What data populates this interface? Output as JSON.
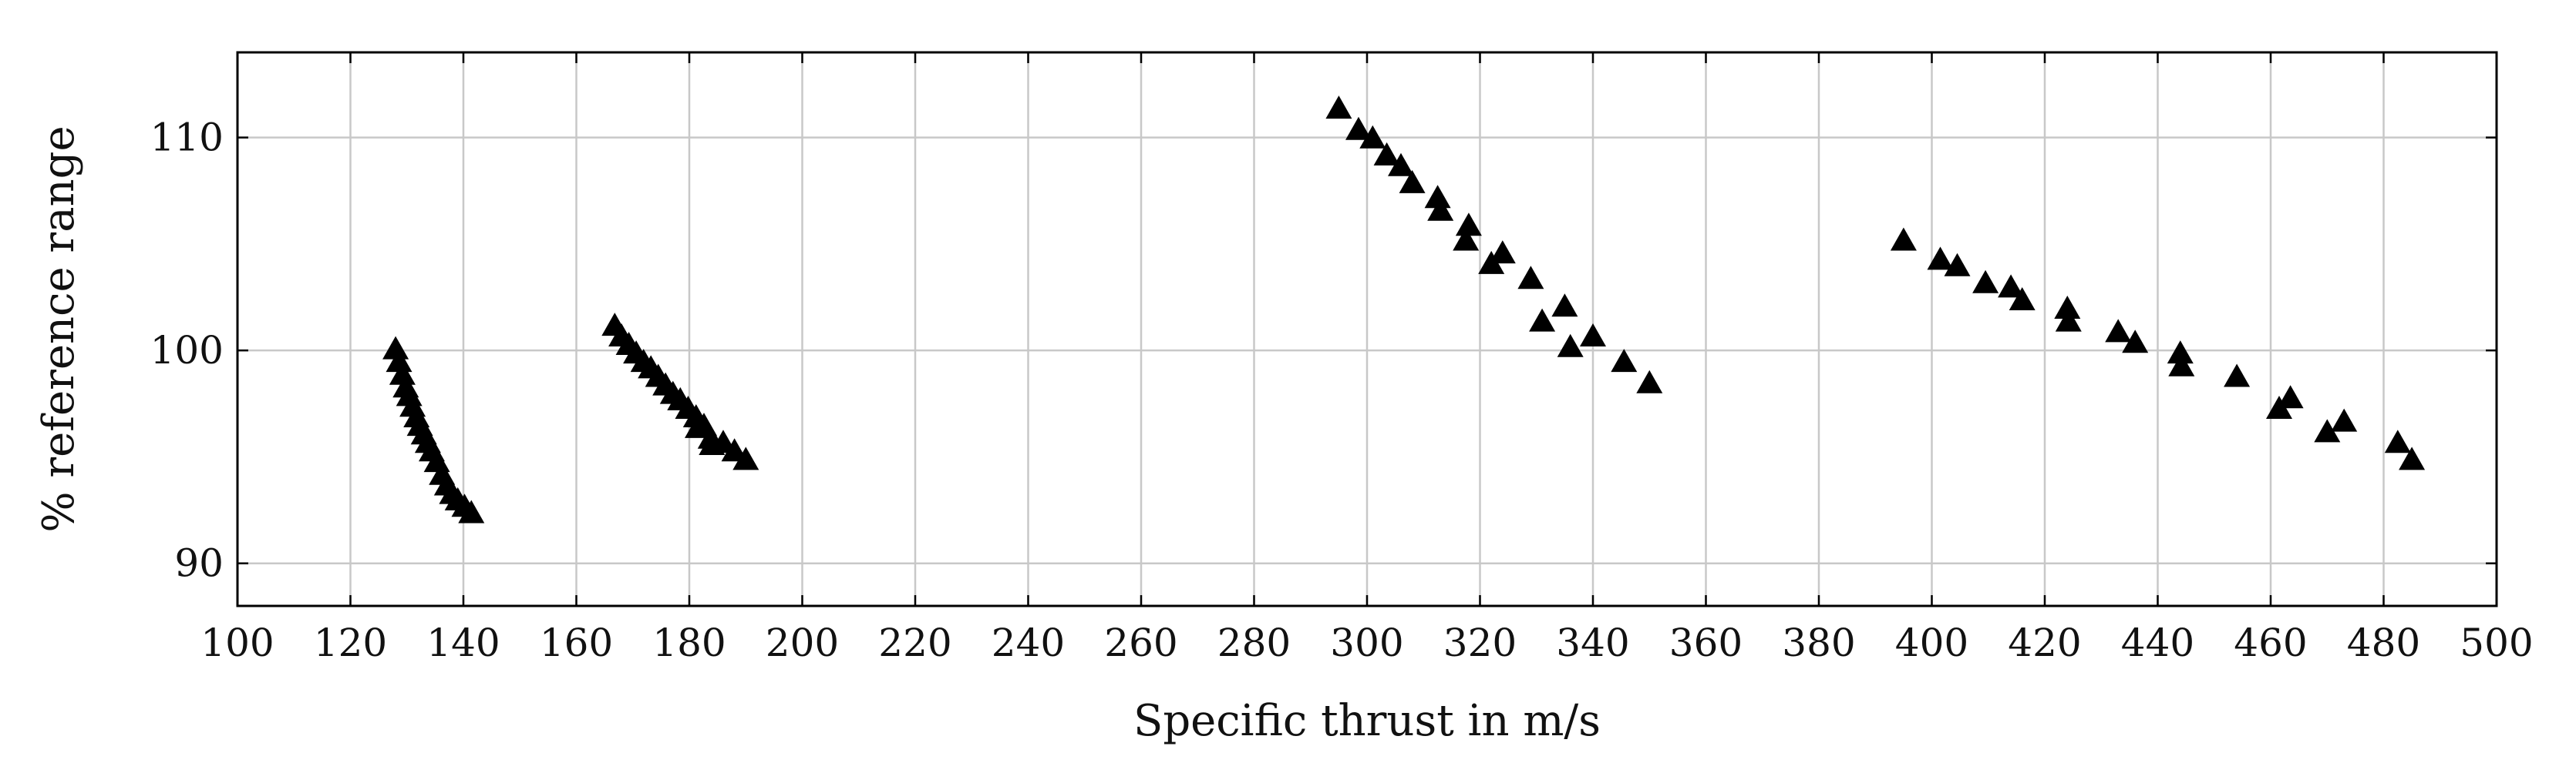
{
  "chart_data": {
    "type": "scatter",
    "xlabel": "Specific thrust in m/s",
    "ylabel": "% reference range",
    "xlim": [
      100,
      500
    ],
    "ylim": [
      88,
      114
    ],
    "xticks": [
      100,
      120,
      140,
      160,
      180,
      200,
      220,
      240,
      260,
      280,
      300,
      320,
      340,
      360,
      380,
      400,
      420,
      440,
      460,
      480,
      500
    ],
    "yticks": [
      90,
      100,
      110
    ],
    "grid": true,
    "marker": "triangle",
    "marker_color": "#000000",
    "grid_color": "#c8c8c8",
    "series": [
      {
        "points": [
          [
            128,
            100.0
          ],
          [
            128.6,
            99.4
          ],
          [
            129.2,
            98.8
          ],
          [
            129.8,
            98.2
          ],
          [
            130.4,
            97.8
          ],
          [
            131.0,
            97.3
          ],
          [
            131.7,
            96.8
          ],
          [
            132.3,
            96.4
          ],
          [
            133.0,
            96.0
          ],
          [
            133.7,
            95.6
          ],
          [
            134.4,
            95.2
          ],
          [
            135.3,
            94.7
          ],
          [
            136.2,
            94.1
          ],
          [
            137.1,
            93.6
          ],
          [
            138.0,
            93.2
          ],
          [
            139.0,
            92.9
          ],
          [
            140.2,
            92.6
          ],
          [
            141.4,
            92.3
          ]
        ]
      },
      {
        "points": [
          [
            166.8,
            101.1
          ],
          [
            168.0,
            100.6
          ],
          [
            169.3,
            100.2
          ],
          [
            170.6,
            99.8
          ],
          [
            171.9,
            99.4
          ],
          [
            173.2,
            99.1
          ],
          [
            174.5,
            98.7
          ],
          [
            175.8,
            98.3
          ],
          [
            177.1,
            97.9
          ],
          [
            178.4,
            97.6
          ],
          [
            179.8,
            97.2
          ],
          [
            181.2,
            96.8
          ],
          [
            182.6,
            96.4
          ],
          [
            183.8,
            95.8
          ],
          [
            186.0,
            95.6
          ],
          [
            188.0,
            95.2
          ],
          [
            190.0,
            94.8
          ],
          [
            181.5,
            96.3
          ],
          [
            184.0,
            95.5
          ]
        ]
      },
      {
        "points": [
          [
            295.0,
            111.3
          ],
          [
            298.5,
            110.3
          ],
          [
            301.0,
            109.9
          ],
          [
            303.5,
            109.1
          ],
          [
            306.0,
            108.6
          ],
          [
            308.0,
            107.8
          ],
          [
            312.5,
            107.1
          ],
          [
            313.0,
            106.5
          ],
          [
            318.0,
            105.8
          ],
          [
            317.5,
            105.1
          ],
          [
            322.0,
            104.0
          ],
          [
            324.0,
            104.5
          ],
          [
            329.0,
            103.3
          ],
          [
            331.0,
            101.3
          ],
          [
            335.0,
            102.0
          ],
          [
            336.0,
            100.1
          ],
          [
            340.0,
            100.6
          ],
          [
            345.5,
            99.4
          ],
          [
            350.0,
            98.4
          ]
        ]
      },
      {
        "points": [
          [
            395.0,
            105.1
          ],
          [
            401.5,
            104.2
          ],
          [
            404.5,
            103.9
          ],
          [
            409.5,
            103.1
          ],
          [
            414.0,
            102.9
          ],
          [
            416.0,
            102.3
          ],
          [
            424.0,
            101.9
          ],
          [
            424.2,
            101.3
          ],
          [
            433.0,
            100.8
          ],
          [
            436.0,
            100.3
          ],
          [
            444.0,
            99.8
          ],
          [
            444.2,
            99.2
          ],
          [
            454.0,
            98.7
          ],
          [
            461.5,
            97.2
          ],
          [
            463.5,
            97.7
          ],
          [
            470.0,
            96.1
          ],
          [
            473.0,
            96.6
          ],
          [
            482.5,
            95.6
          ],
          [
            485.0,
            94.8
          ]
        ]
      }
    ]
  }
}
